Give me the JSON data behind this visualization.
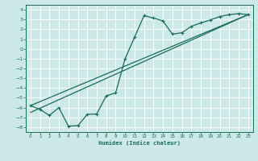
{
  "xlabel": "Humidex (Indice chaleur)",
  "ylabel": "",
  "background_color": "#cce9e7",
  "grid_color": "#ffffff",
  "line_color": "#1a6b5a",
  "xlim": [
    -0.5,
    23.5
  ],
  "ylim": [
    -8.5,
    4.5
  ],
  "xticks": [
    0,
    1,
    2,
    3,
    4,
    5,
    6,
    7,
    8,
    9,
    10,
    11,
    12,
    13,
    14,
    15,
    16,
    17,
    18,
    19,
    20,
    21,
    22,
    23
  ],
  "yticks": [
    -8,
    -7,
    -6,
    -5,
    -4,
    -3,
    -2,
    -1,
    0,
    1,
    2,
    3,
    4
  ],
  "curve1_x": [
    0,
    1,
    2,
    3,
    4,
    5,
    6,
    7,
    8,
    9,
    10,
    11,
    12,
    13,
    14,
    15,
    16,
    17,
    18,
    19,
    20,
    21,
    22,
    23
  ],
  "curve1_y": [
    -5.8,
    -6.2,
    -6.8,
    -6.0,
    -7.9,
    -7.85,
    -6.7,
    -6.65,
    -4.8,
    -4.5,
    -1.0,
    1.2,
    3.4,
    3.15,
    2.85,
    1.5,
    1.65,
    2.3,
    2.65,
    2.95,
    3.3,
    3.5,
    3.6,
    3.5
  ],
  "line1_x": [
    0,
    23
  ],
  "line1_y": [
    -6.5,
    3.5
  ],
  "line2_x": [
    0,
    23
  ],
  "line2_y": [
    -5.8,
    3.5
  ]
}
